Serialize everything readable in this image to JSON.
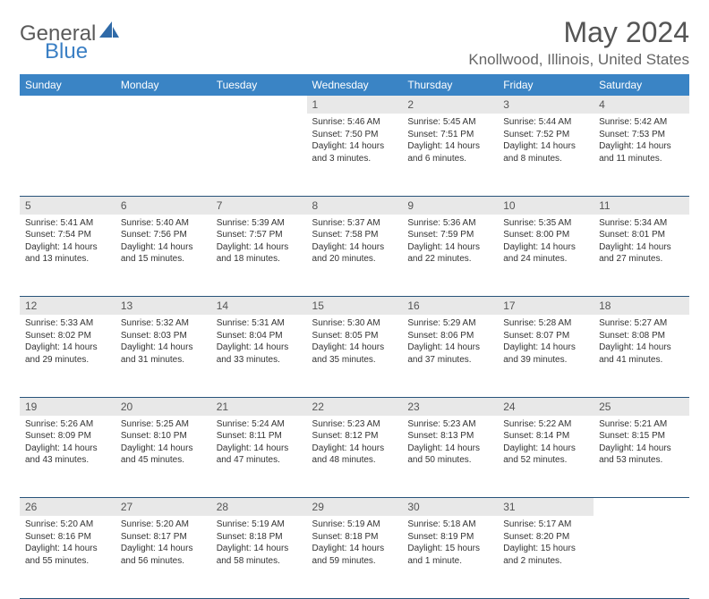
{
  "brand": {
    "part1": "General",
    "part2": "Blue"
  },
  "title": "May 2024",
  "location": "Knollwood, Illinois, United States",
  "colors": {
    "header_bg": "#3a84c5",
    "header_text": "#ffffff",
    "daynum_bg": "#e8e8e8",
    "border": "#28537a",
    "brand_gray": "#5a5a5a",
    "brand_blue": "#3a7fc4"
  },
  "day_headers": [
    "Sunday",
    "Monday",
    "Tuesday",
    "Wednesday",
    "Thursday",
    "Friday",
    "Saturday"
  ],
  "weeks": [
    {
      "nums": [
        "",
        "",
        "",
        "1",
        "2",
        "3",
        "4"
      ],
      "cells": [
        null,
        null,
        null,
        {
          "sr": "Sunrise: 5:46 AM",
          "ss": "Sunset: 7:50 PM",
          "d1": "Daylight: 14 hours",
          "d2": "and 3 minutes."
        },
        {
          "sr": "Sunrise: 5:45 AM",
          "ss": "Sunset: 7:51 PM",
          "d1": "Daylight: 14 hours",
          "d2": "and 6 minutes."
        },
        {
          "sr": "Sunrise: 5:44 AM",
          "ss": "Sunset: 7:52 PM",
          "d1": "Daylight: 14 hours",
          "d2": "and 8 minutes."
        },
        {
          "sr": "Sunrise: 5:42 AM",
          "ss": "Sunset: 7:53 PM",
          "d1": "Daylight: 14 hours",
          "d2": "and 11 minutes."
        }
      ]
    },
    {
      "nums": [
        "5",
        "6",
        "7",
        "8",
        "9",
        "10",
        "11"
      ],
      "cells": [
        {
          "sr": "Sunrise: 5:41 AM",
          "ss": "Sunset: 7:54 PM",
          "d1": "Daylight: 14 hours",
          "d2": "and 13 minutes."
        },
        {
          "sr": "Sunrise: 5:40 AM",
          "ss": "Sunset: 7:56 PM",
          "d1": "Daylight: 14 hours",
          "d2": "and 15 minutes."
        },
        {
          "sr": "Sunrise: 5:39 AM",
          "ss": "Sunset: 7:57 PM",
          "d1": "Daylight: 14 hours",
          "d2": "and 18 minutes."
        },
        {
          "sr": "Sunrise: 5:37 AM",
          "ss": "Sunset: 7:58 PM",
          "d1": "Daylight: 14 hours",
          "d2": "and 20 minutes."
        },
        {
          "sr": "Sunrise: 5:36 AM",
          "ss": "Sunset: 7:59 PM",
          "d1": "Daylight: 14 hours",
          "d2": "and 22 minutes."
        },
        {
          "sr": "Sunrise: 5:35 AM",
          "ss": "Sunset: 8:00 PM",
          "d1": "Daylight: 14 hours",
          "d2": "and 24 minutes."
        },
        {
          "sr": "Sunrise: 5:34 AM",
          "ss": "Sunset: 8:01 PM",
          "d1": "Daylight: 14 hours",
          "d2": "and 27 minutes."
        }
      ]
    },
    {
      "nums": [
        "12",
        "13",
        "14",
        "15",
        "16",
        "17",
        "18"
      ],
      "cells": [
        {
          "sr": "Sunrise: 5:33 AM",
          "ss": "Sunset: 8:02 PM",
          "d1": "Daylight: 14 hours",
          "d2": "and 29 minutes."
        },
        {
          "sr": "Sunrise: 5:32 AM",
          "ss": "Sunset: 8:03 PM",
          "d1": "Daylight: 14 hours",
          "d2": "and 31 minutes."
        },
        {
          "sr": "Sunrise: 5:31 AM",
          "ss": "Sunset: 8:04 PM",
          "d1": "Daylight: 14 hours",
          "d2": "and 33 minutes."
        },
        {
          "sr": "Sunrise: 5:30 AM",
          "ss": "Sunset: 8:05 PM",
          "d1": "Daylight: 14 hours",
          "d2": "and 35 minutes."
        },
        {
          "sr": "Sunrise: 5:29 AM",
          "ss": "Sunset: 8:06 PM",
          "d1": "Daylight: 14 hours",
          "d2": "and 37 minutes."
        },
        {
          "sr": "Sunrise: 5:28 AM",
          "ss": "Sunset: 8:07 PM",
          "d1": "Daylight: 14 hours",
          "d2": "and 39 minutes."
        },
        {
          "sr": "Sunrise: 5:27 AM",
          "ss": "Sunset: 8:08 PM",
          "d1": "Daylight: 14 hours",
          "d2": "and 41 minutes."
        }
      ]
    },
    {
      "nums": [
        "19",
        "20",
        "21",
        "22",
        "23",
        "24",
        "25"
      ],
      "cells": [
        {
          "sr": "Sunrise: 5:26 AM",
          "ss": "Sunset: 8:09 PM",
          "d1": "Daylight: 14 hours",
          "d2": "and 43 minutes."
        },
        {
          "sr": "Sunrise: 5:25 AM",
          "ss": "Sunset: 8:10 PM",
          "d1": "Daylight: 14 hours",
          "d2": "and 45 minutes."
        },
        {
          "sr": "Sunrise: 5:24 AM",
          "ss": "Sunset: 8:11 PM",
          "d1": "Daylight: 14 hours",
          "d2": "and 47 minutes."
        },
        {
          "sr": "Sunrise: 5:23 AM",
          "ss": "Sunset: 8:12 PM",
          "d1": "Daylight: 14 hours",
          "d2": "and 48 minutes."
        },
        {
          "sr": "Sunrise: 5:23 AM",
          "ss": "Sunset: 8:13 PM",
          "d1": "Daylight: 14 hours",
          "d2": "and 50 minutes."
        },
        {
          "sr": "Sunrise: 5:22 AM",
          "ss": "Sunset: 8:14 PM",
          "d1": "Daylight: 14 hours",
          "d2": "and 52 minutes."
        },
        {
          "sr": "Sunrise: 5:21 AM",
          "ss": "Sunset: 8:15 PM",
          "d1": "Daylight: 14 hours",
          "d2": "and 53 minutes."
        }
      ]
    },
    {
      "nums": [
        "26",
        "27",
        "28",
        "29",
        "30",
        "31",
        ""
      ],
      "cells": [
        {
          "sr": "Sunrise: 5:20 AM",
          "ss": "Sunset: 8:16 PM",
          "d1": "Daylight: 14 hours",
          "d2": "and 55 minutes."
        },
        {
          "sr": "Sunrise: 5:20 AM",
          "ss": "Sunset: 8:17 PM",
          "d1": "Daylight: 14 hours",
          "d2": "and 56 minutes."
        },
        {
          "sr": "Sunrise: 5:19 AM",
          "ss": "Sunset: 8:18 PM",
          "d1": "Daylight: 14 hours",
          "d2": "and 58 minutes."
        },
        {
          "sr": "Sunrise: 5:19 AM",
          "ss": "Sunset: 8:18 PM",
          "d1": "Daylight: 14 hours",
          "d2": "and 59 minutes."
        },
        {
          "sr": "Sunrise: 5:18 AM",
          "ss": "Sunset: 8:19 PM",
          "d1": "Daylight: 15 hours",
          "d2": "and 1 minute."
        },
        {
          "sr": "Sunrise: 5:17 AM",
          "ss": "Sunset: 8:20 PM",
          "d1": "Daylight: 15 hours",
          "d2": "and 2 minutes."
        },
        null
      ]
    }
  ]
}
